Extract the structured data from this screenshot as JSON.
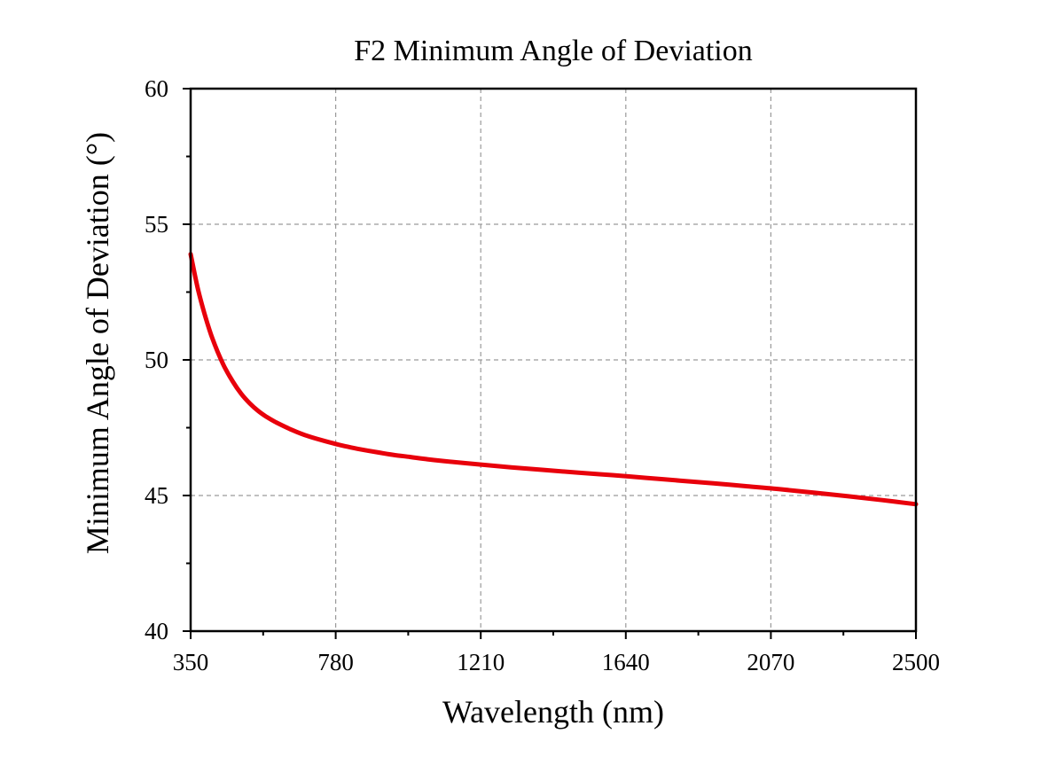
{
  "chart_data": {
    "type": "line",
    "title": "F2 Minimum Angle of Deviation",
    "xlabel": "Wavelength (nm)",
    "ylabel": "Minimum Angle of Deviation (°)",
    "xlim": [
      350,
      2500
    ],
    "ylim": [
      40,
      60
    ],
    "x_ticks": [
      350,
      780,
      1210,
      1640,
      2070,
      2500
    ],
    "x_tick_labels": [
      "350",
      "780",
      "1210",
      "1640",
      "2070",
      "2500"
    ],
    "y_ticks": [
      40,
      45,
      50,
      55,
      60
    ],
    "y_tick_labels": [
      "40",
      "45",
      "50",
      "55",
      "60"
    ],
    "x_minor_step": 215,
    "y_minor_step": 2.5,
    "grid": true,
    "legend": "none",
    "colors": {
      "series": "#e8000b",
      "grid": "#9a9a9a"
    },
    "series": [
      {
        "color": "#e8000b",
        "x": [
          350,
          370,
          390,
          410,
          430,
          450,
          475,
          500,
          525,
          550,
          575,
          600,
          650,
          700,
          750,
          800,
          850,
          900,
          950,
          1000,
          1050,
          1100,
          1200,
          1300,
          1400,
          1500,
          1600,
          1700,
          1800,
          1900,
          2000,
          2100,
          2200,
          2300,
          2400,
          2500
        ],
        "y": [
          53.9,
          52.7,
          51.75,
          50.95,
          50.3,
          49.75,
          49.2,
          48.75,
          48.4,
          48.12,
          47.9,
          47.72,
          47.42,
          47.18,
          47.0,
          46.84,
          46.71,
          46.6,
          46.5,
          46.42,
          46.34,
          46.27,
          46.15,
          46.04,
          45.94,
          45.84,
          45.75,
          45.65,
          45.55,
          45.45,
          45.34,
          45.23,
          45.1,
          44.97,
          44.83,
          44.68
        ]
      }
    ]
  }
}
